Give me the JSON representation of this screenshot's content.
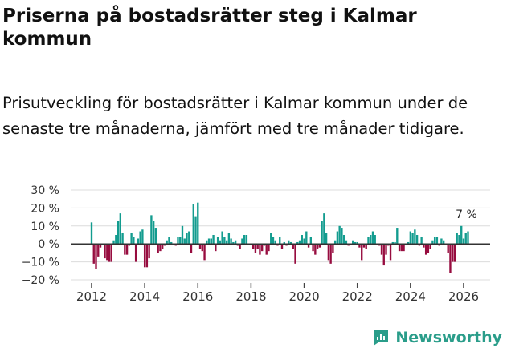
{
  "title": "Priserna på bostadsrätter steg i Kalmar kommun",
  "subtitle": "Prisutveckling för bostadsrätter i Kalmar kommun under de senaste tre månaderna, jämfört med tre månader tidigare.",
  "brand": "Newsworthy",
  "colors": {
    "positive": "#139c8f",
    "negative": "#970c3f",
    "brand": "#2a9d8a"
  },
  "chart_data": {
    "type": "bar",
    "title": "",
    "xlabel": "",
    "ylabel": "",
    "ylim": [
      -20,
      30
    ],
    "yticks": [
      -20,
      -10,
      0,
      10,
      20,
      30
    ],
    "ytick_labels": [
      "−20 %",
      "−10 %",
      "0 %",
      "10 %",
      "20 %",
      "30 %"
    ],
    "xticks": [
      2012,
      2014,
      2016,
      2018,
      2020,
      2022,
      2024,
      2026
    ],
    "xtick_labels": [
      "2012",
      "2014",
      "2016",
      "2018",
      "2020",
      "2022",
      "2024",
      "2026"
    ],
    "x_start": "2012-01",
    "frequency": "monthly",
    "values": [
      12,
      -11,
      -14,
      -7,
      -2,
      0,
      -8,
      -9,
      -10,
      -10,
      2,
      5,
      13,
      17,
      6,
      -6,
      -6,
      -1,
      6,
      4,
      -10,
      3,
      7,
      8,
      -13,
      -13,
      -8,
      16,
      13,
      9,
      -5,
      -4,
      -3,
      -1,
      2,
      4,
      1,
      0,
      -1,
      4,
      4,
      10,
      3,
      6,
      7,
      -5,
      22,
      15,
      23,
      -3,
      -4,
      -9,
      2,
      3,
      3,
      5,
      -4,
      4,
      2,
      7,
      4,
      2,
      6,
      3,
      1,
      2,
      -1,
      -3,
      3,
      5,
      5,
      0,
      0,
      -3,
      -5,
      -3,
      -6,
      -4,
      -1,
      -6,
      -4,
      6,
      4,
      2,
      -1,
      4,
      -3,
      1,
      -1,
      2,
      1,
      -3,
      -11,
      1,
      2,
      5,
      3,
      7,
      -2,
      4,
      -4,
      -6,
      -3,
      -2,
      13,
      17,
      6,
      -9,
      -11,
      -5,
      2,
      7,
      10,
      9,
      5,
      2,
      -1,
      0,
      2,
      1,
      1,
      -2,
      -9,
      -2,
      -3,
      4,
      5,
      7,
      5,
      0,
      -1,
      -6,
      -12,
      -6,
      -1,
      -9,
      1,
      1,
      9,
      -4,
      -4,
      -4,
      0,
      1,
      7,
      6,
      8,
      5,
      -1,
      4,
      -2,
      -6,
      -5,
      -3,
      2,
      4,
      4,
      -1,
      3,
      2,
      0,
      -5,
      -16,
      -10,
      -10,
      6,
      5,
      10,
      3,
      6,
      7
    ],
    "annotation": {
      "text": "7 %",
      "target": "last"
    },
    "grid": true,
    "legend": "none"
  }
}
